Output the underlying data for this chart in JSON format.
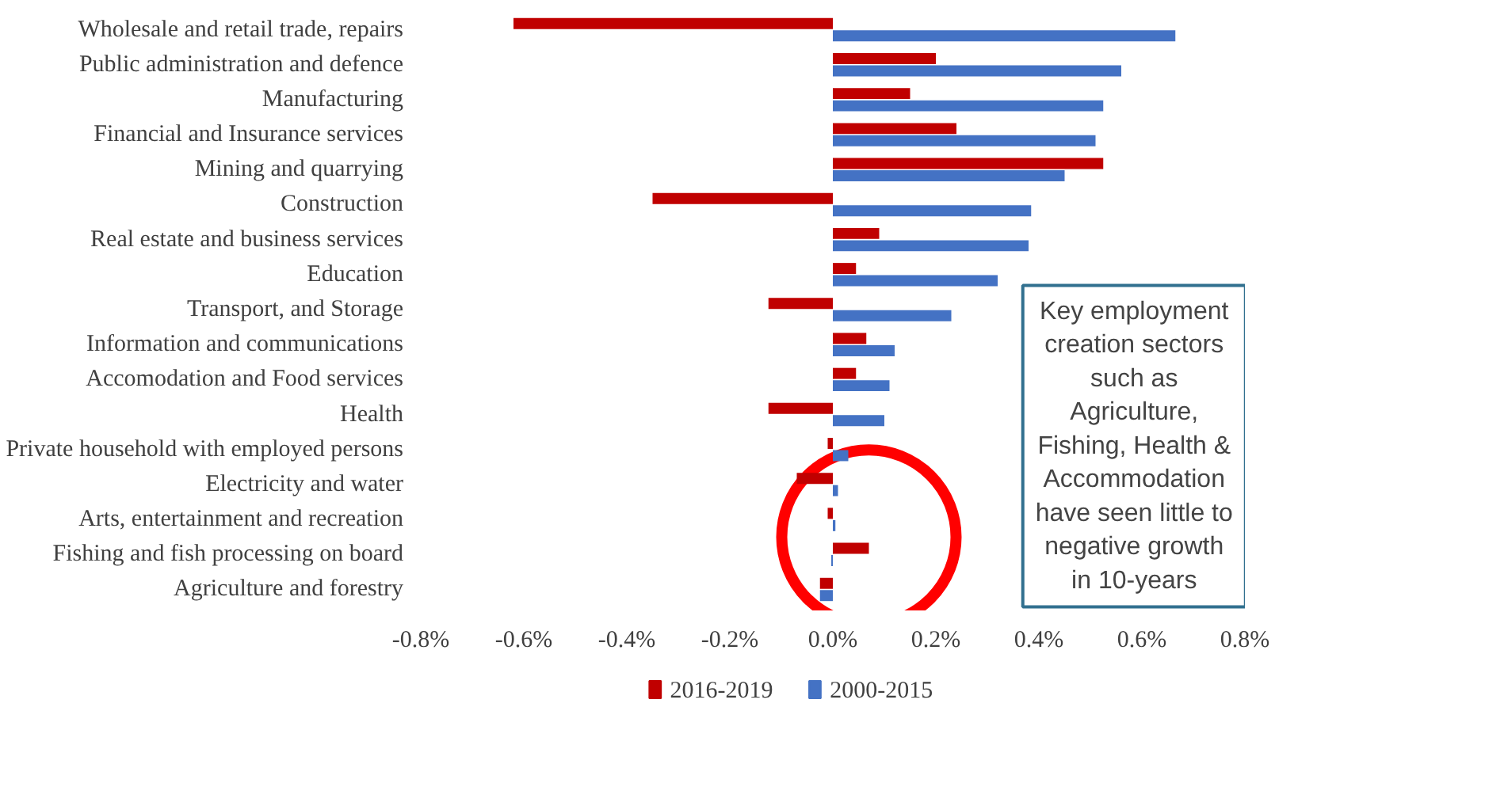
{
  "chart_data": {
    "type": "bar",
    "orientation": "horizontal",
    "categories": [
      "Wholesale and retail trade, repairs",
      "Public administration and defence",
      "Manufacturing",
      "Financial and Insurance services",
      "Mining and quarrying",
      "Construction",
      "Real estate and business services",
      "Education",
      "Transport, and Storage",
      "Information and communications",
      "Accomodation and Food services",
      "Health",
      "Private household with employed persons",
      "Electricity and water",
      "Arts, entertainment and recreation",
      "Fishing and fish processing on board",
      "Agriculture and forestry"
    ],
    "series": [
      {
        "name": "2016-2019",
        "color": "#c00000",
        "values": [
          -0.62,
          0.2,
          0.15,
          0.24,
          0.525,
          -0.35,
          0.09,
          0.045,
          -0.125,
          0.065,
          0.045,
          -0.125,
          -0.01,
          -0.07,
          -0.01,
          0.07,
          -0.025
        ]
      },
      {
        "name": "2000-2015",
        "color": "#4472c4",
        "values": [
          0.665,
          0.56,
          0.525,
          0.51,
          0.45,
          0.385,
          0.38,
          0.32,
          0.23,
          0.12,
          0.11,
          0.1,
          0.03,
          0.01,
          0.005,
          -0.003,
          -0.025
        ]
      }
    ],
    "xlim": [
      -0.8,
      0.8
    ],
    "xticks": [
      {
        "value": -0.8,
        "label": "-0.8%"
      },
      {
        "value": -0.6,
        "label": "-0.6%"
      },
      {
        "value": -0.4,
        "label": "-0.4%"
      },
      {
        "value": -0.2,
        "label": "-0.2%"
      },
      {
        "value": 0,
        "label": "0.0%"
      },
      {
        "value": 0.2,
        "label": "0.2%"
      },
      {
        "value": 0.4,
        "label": "0.4%"
      },
      {
        "value": 0.6,
        "label": "0.6%"
      },
      {
        "value": 0.8,
        "label": "0.8%"
      }
    ],
    "grid": false,
    "legend": "bottom",
    "annotations": [
      "Key employment\ncreation sectors\nsuch as\nAgriculture,\nFishing, Health &\nAccommodation\nhave seen little to\nnegative growth\nin 10-years"
    ]
  }
}
